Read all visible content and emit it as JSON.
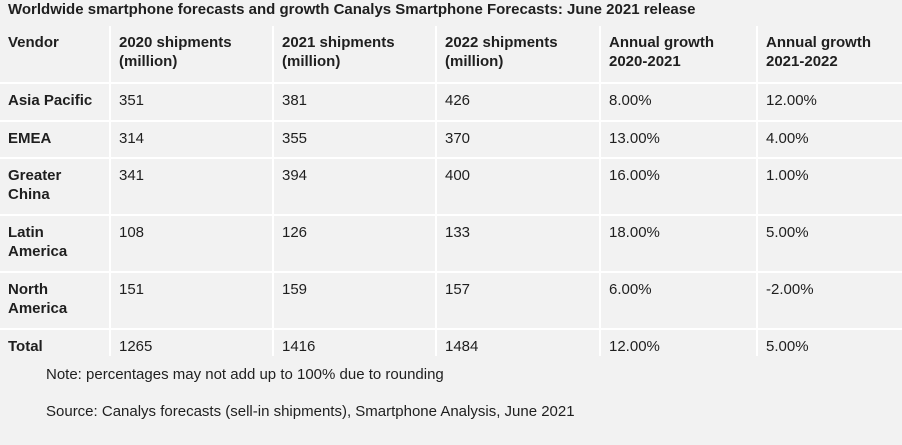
{
  "title": "Worldwide smartphone forecasts and growth Canalys Smartphone Forecasts: June 2021 release",
  "chart_data": {
    "type": "table",
    "title": "Worldwide smartphone forecasts and growth Canalys Smartphone Forecasts: June 2021 release",
    "columns": [
      "Vendor",
      "2020 shipments (million)",
      "2021 shipments (million)",
      "2022 shipments (million)",
      "Annual growth 2020-2021",
      "Annual growth 2021-2022"
    ],
    "rows": [
      [
        "Asia Pacific",
        "351",
        "381",
        "426",
        "8.00%",
        "12.00%"
      ],
      [
        "EMEA",
        "314",
        "355",
        "370",
        "13.00%",
        "4.00%"
      ],
      [
        "Greater China",
        "341",
        "394",
        "400",
        "16.00%",
        "1.00%"
      ],
      [
        "Latin America",
        "108",
        "126",
        "133",
        "18.00%",
        "5.00%"
      ],
      [
        "North America",
        "151",
        "159",
        "157",
        "6.00%",
        "-2.00%"
      ],
      [
        "Total",
        "1265",
        "1416",
        "1484",
        "12.00%",
        "5.00%"
      ]
    ]
  },
  "footer": {
    "note": "Note: percentages may not add up to 100% due to rounding",
    "source": "Source: Canalys forecasts (sell-in shipments), Smartphone Analysis, June 2021"
  }
}
